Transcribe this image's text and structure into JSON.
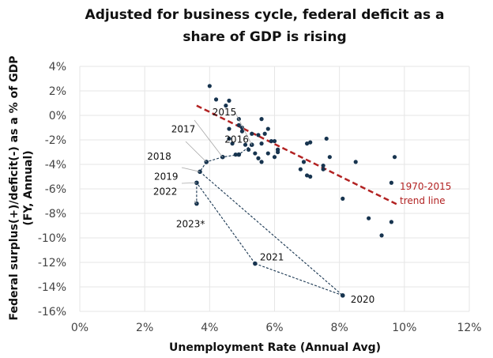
{
  "chart_data": {
    "type": "scatter",
    "title": "Adjusted for business cycle, federal deficit as a share of GDP is rising",
    "title_lines": [
      "Adjusted for business cycle, federal deficit as a",
      "share of GDP is rising"
    ],
    "xlabel": "Unemployment Rate (Annual Avg)",
    "ylabel_lines": [
      "Federal surplus(+)/deficit(-) as a % of GDP",
      "(FY, Annual)"
    ],
    "xlim": [
      0,
      12
    ],
    "ylim": [
      -16,
      4
    ],
    "x_ticks": [
      0,
      2,
      4,
      6,
      8,
      10,
      12
    ],
    "y_ticks": [
      4,
      2,
      0,
      -2,
      -4,
      -6,
      -8,
      -10,
      -12,
      -14,
      -16
    ],
    "x_tick_labels": [
      "0%",
      "2%",
      "4%",
      "6%",
      "8%",
      "10%",
      "12%"
    ],
    "y_tick_labels": [
      "4%",
      "2%",
      "0%",
      "-2%",
      "-4%",
      "-6%",
      "-8%",
      "-10%",
      "-12%",
      "-14%",
      "-16%"
    ],
    "grid": true,
    "colors": {
      "points": "#17344f",
      "trend": "#b22222",
      "grid": "#e6e6e6",
      "path": "#17344f"
    },
    "historical_points": [
      {
        "x": 4.0,
        "y": 2.4
      },
      {
        "x": 4.2,
        "y": 1.3
      },
      {
        "x": 4.5,
        "y": 0.8
      },
      {
        "x": 4.6,
        "y": 1.2
      },
      {
        "x": 4.9,
        "y": -0.3
      },
      {
        "x": 4.9,
        "y": -0.8
      },
      {
        "x": 5.0,
        "y": -1.3
      },
      {
        "x": 5.0,
        "y": -1.0
      },
      {
        "x": 4.6,
        "y": -1.1
      },
      {
        "x": 4.6,
        "y": -1.9
      },
      {
        "x": 4.8,
        "y": -3.2
      },
      {
        "x": 4.7,
        "y": -2.3
      },
      {
        "x": 5.1,
        "y": -2.4
      },
      {
        "x": 5.2,
        "y": -2.8
      },
      {
        "x": 5.3,
        "y": -1.5
      },
      {
        "x": 5.4,
        "y": -3.1
      },
      {
        "x": 5.5,
        "y": -3.5
      },
      {
        "x": 5.5,
        "y": -1.6
      },
      {
        "x": 5.6,
        "y": -3.8
      },
      {
        "x": 5.6,
        "y": -0.3
      },
      {
        "x": 5.6,
        "y": -2.3
      },
      {
        "x": 5.7,
        "y": -1.5
      },
      {
        "x": 5.8,
        "y": -1.1
      },
      {
        "x": 5.8,
        "y": -3.1
      },
      {
        "x": 5.9,
        "y": -2.1
      },
      {
        "x": 6.0,
        "y": -2.1
      },
      {
        "x": 6.0,
        "y": -3.4
      },
      {
        "x": 6.1,
        "y": -2.8
      },
      {
        "x": 6.1,
        "y": -2.8
      },
      {
        "x": 6.1,
        "y": -3.0
      },
      {
        "x": 6.8,
        "y": -4.4
      },
      {
        "x": 6.9,
        "y": -3.8
      },
      {
        "x": 7.0,
        "y": -4.9
      },
      {
        "x": 7.0,
        "y": -2.3
      },
      {
        "x": 7.1,
        "y": -2.2
      },
      {
        "x": 7.1,
        "y": -5.0
      },
      {
        "x": 7.5,
        "y": -4.4
      },
      {
        "x": 7.5,
        "y": -4.1
      },
      {
        "x": 7.6,
        "y": -1.9
      },
      {
        "x": 7.7,
        "y": -3.4
      },
      {
        "x": 8.1,
        "y": -6.8
      },
      {
        "x": 8.5,
        "y": -3.8
      },
      {
        "x": 8.9,
        "y": -8.4
      },
      {
        "x": 9.3,
        "y": -9.8
      },
      {
        "x": 9.6,
        "y": -5.5
      },
      {
        "x": 9.6,
        "y": -8.7
      },
      {
        "x": 9.7,
        "y": -3.4
      }
    ],
    "recent_series": [
      {
        "year": "2015",
        "x": 5.3,
        "y": -2.4
      },
      {
        "year": "2016",
        "x": 4.9,
        "y": -3.2
      },
      {
        "year": "2017",
        "x": 4.4,
        "y": -3.4
      },
      {
        "year": "2018",
        "x": 3.9,
        "y": -3.8
      },
      {
        "year": "2019",
        "x": 3.7,
        "y": -4.6
      },
      {
        "year": "2020",
        "x": 8.1,
        "y": -14.7
      },
      {
        "year": "2021",
        "x": 5.4,
        "y": -12.1
      },
      {
        "year": "2022",
        "x": 3.6,
        "y": -5.5
      },
      {
        "year": "2023*",
        "x": 3.6,
        "y": -7.2
      }
    ],
    "trend_line": {
      "label_lines": [
        "1970-2015",
        "trend line"
      ],
      "start": {
        "x": 3.6,
        "y": 0.8
      },
      "end": {
        "x": 9.8,
        "y": -7.3
      }
    }
  }
}
